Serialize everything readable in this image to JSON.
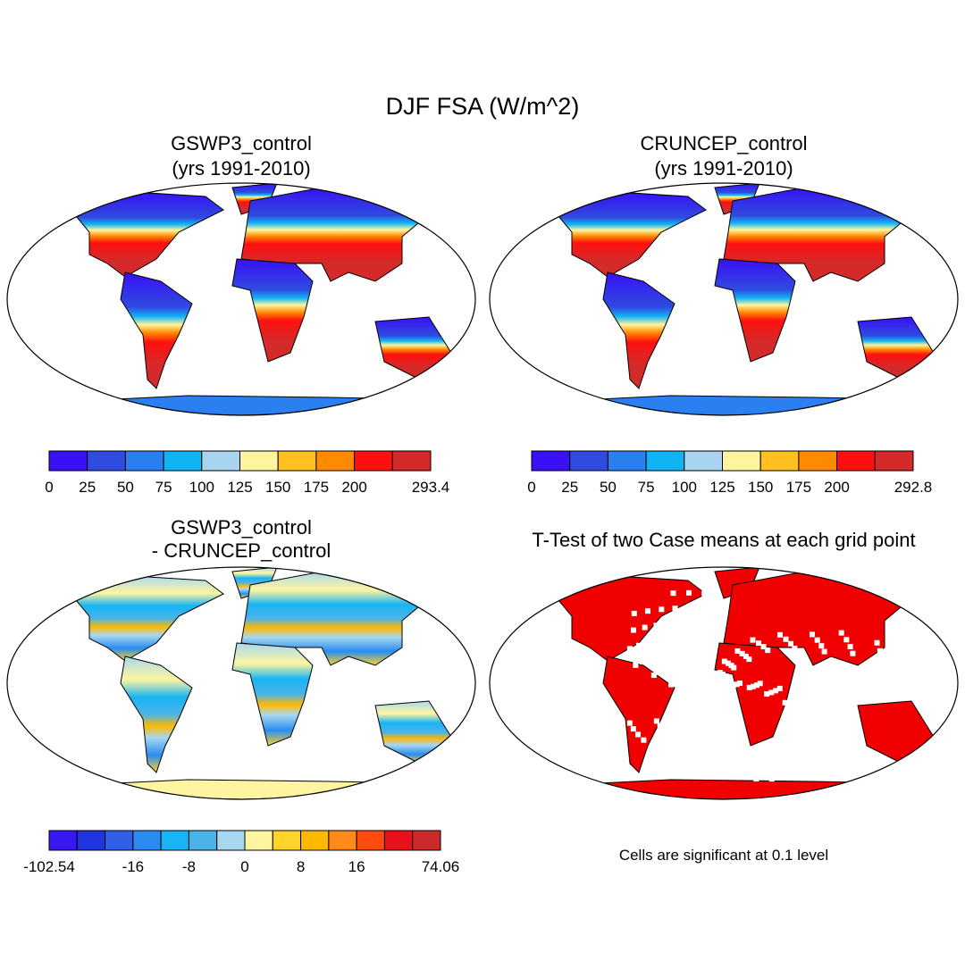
{
  "title": "DJF FSA (W/m^2)",
  "panels": [
    {
      "title": [
        "GSWP3_control",
        "(yrs 1991-2010)"
      ],
      "colorbar": {
        "colors": [
          "#3a10f5",
          "#2f4be0",
          "#2a80f0",
          "#10b4f5",
          "#a8d4f0",
          "#fff5a0",
          "#ffc020",
          "#ff8a00",
          "#ff1010",
          "#d42a2a"
        ],
        "labels": [
          0,
          25,
          50,
          75,
          100,
          125,
          150,
          175,
          200,
          null,
          293.4
        ]
      }
    },
    {
      "title": [
        "CRUNCEP_control",
        "(yrs 1991-2010)"
      ],
      "colorbar": {
        "colors": [
          "#3a10f5",
          "#2f4be0",
          "#2a80f0",
          "#10b4f5",
          "#a8d4f0",
          "#fff5a0",
          "#ffc020",
          "#ff8a00",
          "#ff1010",
          "#d42a2a"
        ],
        "labels": [
          0,
          25,
          50,
          75,
          100,
          125,
          150,
          175,
          200,
          null,
          292.8
        ]
      }
    },
    {
      "title": [
        "GSWP3_control",
        "- CRUNCEP_control"
      ],
      "colorbar": {
        "colors": [
          "#3718f0",
          "#2035e0",
          "#3060e8",
          "#2a8cf0",
          "#18b4f5",
          "#4ab4e8",
          "#a8d8f0",
          "#fff5a0",
          "#ffd42a",
          "#ffb800",
          "#ff8a1a",
          "#ff4a10",
          "#e8101a",
          "#cc2a2a"
        ],
        "labels": [
          -102.54,
          null,
          null,
          -16,
          null,
          -8,
          null,
          0,
          null,
          8,
          null,
          16,
          null,
          null,
          74.06
        ]
      }
    },
    {
      "title": [
        "T-Test of two Case means at each grid point"
      ],
      "note": "Cells are significant at 0.1 level"
    }
  ]
}
